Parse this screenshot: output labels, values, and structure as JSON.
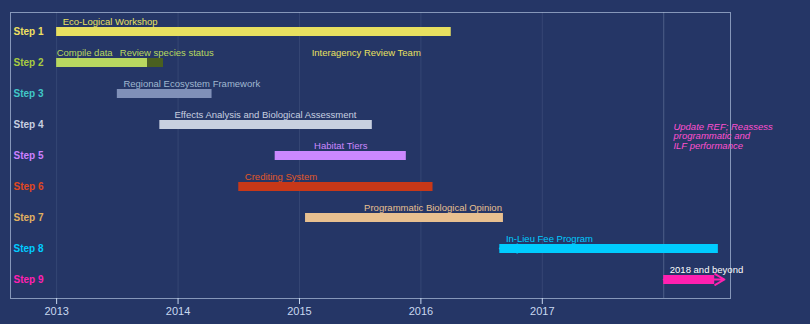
{
  "chart_data": {
    "type": "gantt",
    "orientation": "horizontal",
    "categories": [
      "Step 1",
      "Step 2",
      "Step 3",
      "Step 4",
      "Step 5",
      "Step 6",
      "Step 7",
      "Step 8",
      "Step 9"
    ],
    "category_colors": [
      "#f0e060",
      "#a8cc40",
      "#40c8c8",
      "#c8d0e0",
      "#cc80ff",
      "#e04820",
      "#e0b060",
      "#00ccff",
      "#ff20b0"
    ],
    "bars": [
      {
        "category": "Step 1",
        "start": 2013.0,
        "end": 2016.25,
        "color": "#e8e060"
      },
      {
        "category": "Step 2",
        "start": 2013.0,
        "end": 2013.75,
        "color": "#b8d860"
      },
      {
        "category": "Step 2",
        "start": 2013.75,
        "end": 2013.88,
        "color": "#4a6020"
      },
      {
        "category": "Step 3",
        "start": 2013.5,
        "end": 2014.28,
        "color": "#8090b8"
      },
      {
        "category": "Step 4",
        "start": 2013.85,
        "end": 2015.6,
        "color": "#c8d0e0"
      },
      {
        "category": "Step 5",
        "start": 2014.8,
        "end": 2015.88,
        "color": "#cc88ff"
      },
      {
        "category": "Step 6",
        "start": 2014.5,
        "end": 2016.1,
        "color": "#c83818"
      },
      {
        "category": "Step 7",
        "start": 2015.05,
        "end": 2016.68,
        "color": "#e8c090"
      },
      {
        "category": "Step 8",
        "start": 2016.65,
        "end": 2018.45,
        "color": "#00ccff"
      },
      {
        "category": "Step 9",
        "start": 2018.0,
        "end": 2018.42,
        "color": "#ff20b0"
      }
    ],
    "annotations": [
      {
        "text": "Eco-Logical Workshop",
        "x": 2013.05,
        "category": "Step 1",
        "color": "#e8e060",
        "align": "start",
        "italic": false
      },
      {
        "text": "Compile data",
        "x": 2013.0,
        "category": "Step 2",
        "color": "#b8d860",
        "align": "start",
        "italic": false
      },
      {
        "text": "Regional Ecosystem Framework",
        "x": 2013.55,
        "category": "Step 3",
        "color": "#a0b8d0",
        "align": "start",
        "italic": false
      },
      {
        "text": "Effects Analysis and Biological Assessment",
        "x": 2014.72,
        "category": "Step 4",
        "color": "#c8d0e0",
        "align": "middle",
        "italic": false
      },
      {
        "text": "Habitat Tiers",
        "x": 2015.34,
        "category": "Step 5",
        "color": "#cc88ff",
        "align": "middle",
        "italic": false
      },
      {
        "text": "Crediting System",
        "x": 2014.55,
        "category": "Step 6",
        "color": "#e05828",
        "align": "start",
        "italic": false
      },
      {
        "text": "Programmatic Biological Opinion",
        "x": 2016.1,
        "category": "Step 7",
        "color": "#e8c090",
        "align": "middle",
        "italic": false
      },
      {
        "text": "In-Lieu Fee Program",
        "x": 2016.7,
        "category": "Step 8",
        "color": "#00ccff",
        "align": "start",
        "italic": false
      },
      {
        "text": "Review species status",
        "x": 2013.52,
        "category": "Step 2",
        "color": "#b8d860",
        "align": "start",
        "italic": false
      },
      {
        "text": "Interagency Review Team",
        "x": 2015.55,
        "category": "Step 2",
        "color": "#e8e060",
        "align": "middle",
        "italic": false
      },
      {
        "text": "Update REF; Reassess\nprogrammatic and\nILF performance",
        "x": 2018.08,
        "category": "Step 5",
        "color": "#ff50d0",
        "align": "start",
        "italic": true
      },
      {
        "text": "2018 and beyond",
        "x": 2018.05,
        "category": "Step 9",
        "color": "#ffffff",
        "align": "start",
        "italic": false
      }
    ],
    "arrows": [
      {
        "category": "Step 9",
        "start": 2018.0,
        "end": 2018.5,
        "color": "#ff20b0"
      },
      {
        "category": "Step 8",
        "start": 2016.65,
        "end": 2016.85,
        "color": "#00ccff"
      }
    ],
    "vline": 2018.0,
    "xlim": [
      2012.62,
      2018.55
    ],
    "xticks": [
      2013,
      2014,
      2015,
      2016,
      2017
    ],
    "grid": true,
    "tick_labels": "x",
    "background": "#253666",
    "tick_color": "#c8d8f0"
  }
}
